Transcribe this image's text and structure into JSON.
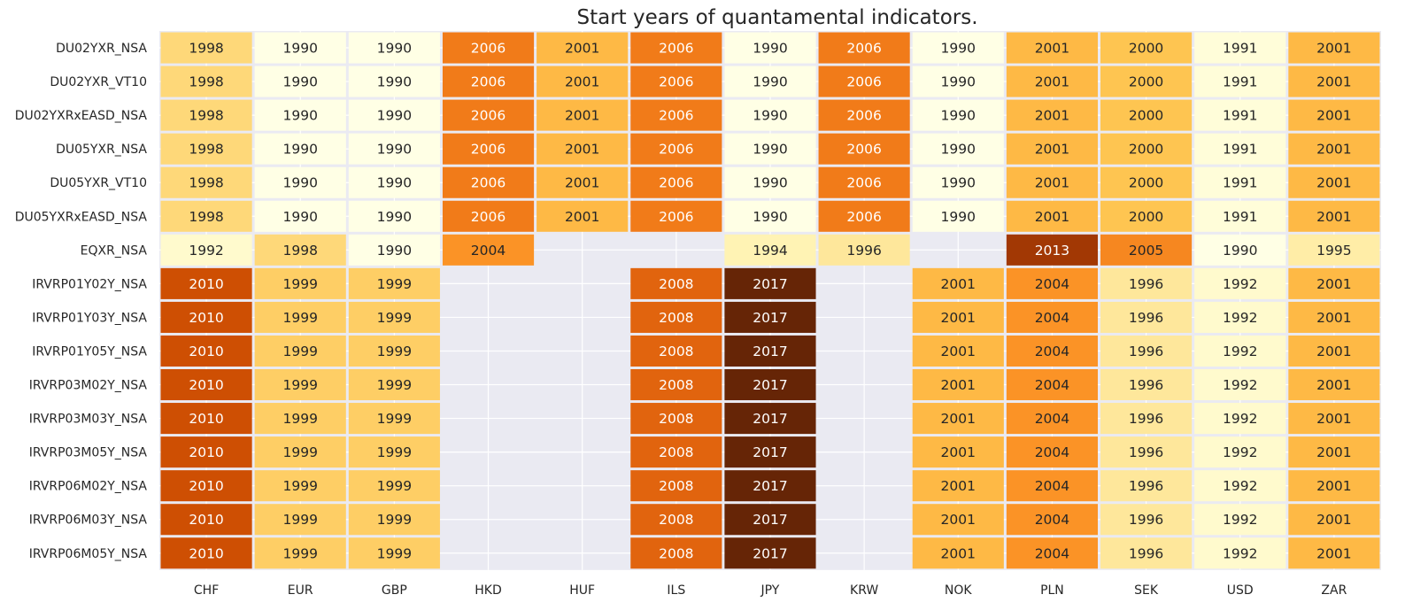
{
  "chart_data": {
    "type": "heatmap",
    "title": "Start years of quantamental indicators.",
    "xlabel": "",
    "ylabel": "",
    "columns": [
      "CHF",
      "EUR",
      "GBP",
      "HKD",
      "HUF",
      "ILS",
      "JPY",
      "KRW",
      "NOK",
      "PLN",
      "SEK",
      "USD",
      "ZAR"
    ],
    "rows": [
      "DU02YXR_NSA",
      "DU02YXR_VT10",
      "DU02YXRxEASD_NSA",
      "DU05YXR_NSA",
      "DU05YXR_VT10",
      "DU05YXRxEASD_NSA",
      "EQXR_NSA",
      "IRVRP01Y02Y_NSA",
      "IRVRP01Y03Y_NSA",
      "IRVRP01Y05Y_NSA",
      "IRVRP03M02Y_NSA",
      "IRVRP03M03Y_NSA",
      "IRVRP03M05Y_NSA",
      "IRVRP06M02Y_NSA",
      "IRVRP06M03Y_NSA",
      "IRVRP06M05Y_NSA"
    ],
    "values": [
      [
        1998,
        1990,
        1990,
        2006,
        2001,
        2006,
        1990,
        2006,
        1990,
        2001,
        2000,
        1991,
        2001
      ],
      [
        1998,
        1990,
        1990,
        2006,
        2001,
        2006,
        1990,
        2006,
        1990,
        2001,
        2000,
        1991,
        2001
      ],
      [
        1998,
        1990,
        1990,
        2006,
        2001,
        2006,
        1990,
        2006,
        1990,
        2001,
        2000,
        1991,
        2001
      ],
      [
        1998,
        1990,
        1990,
        2006,
        2001,
        2006,
        1990,
        2006,
        1990,
        2001,
        2000,
        1991,
        2001
      ],
      [
        1998,
        1990,
        1990,
        2006,
        2001,
        2006,
        1990,
        2006,
        1990,
        2001,
        2000,
        1991,
        2001
      ],
      [
        1998,
        1990,
        1990,
        2006,
        2001,
        2006,
        1990,
        2006,
        1990,
        2001,
        2000,
        1991,
        2001
      ],
      [
        1992,
        1998,
        1990,
        2004,
        null,
        null,
        1994,
        1996,
        null,
        2013,
        2005,
        1990,
        1995
      ],
      [
        2010,
        1999,
        1999,
        null,
        null,
        2008,
        2017,
        null,
        2001,
        2004,
        1996,
        1992,
        2001
      ],
      [
        2010,
        1999,
        1999,
        null,
        null,
        2008,
        2017,
        null,
        2001,
        2004,
        1996,
        1992,
        2001
      ],
      [
        2010,
        1999,
        1999,
        null,
        null,
        2008,
        2017,
        null,
        2001,
        2004,
        1996,
        1992,
        2001
      ],
      [
        2010,
        1999,
        1999,
        null,
        null,
        2008,
        2017,
        null,
        2001,
        2004,
        1996,
        1992,
        2001
      ],
      [
        2010,
        1999,
        1999,
        null,
        null,
        2008,
        2017,
        null,
        2001,
        2004,
        1996,
        1992,
        2001
      ],
      [
        2010,
        1999,
        1999,
        null,
        null,
        2008,
        2017,
        null,
        2001,
        2004,
        1996,
        1992,
        2001
      ],
      [
        2010,
        1999,
        1999,
        null,
        null,
        2008,
        2017,
        null,
        2001,
        2004,
        1996,
        1992,
        2001
      ],
      [
        2010,
        1999,
        1999,
        null,
        null,
        2008,
        2017,
        null,
        2001,
        2004,
        1996,
        1992,
        2001
      ],
      [
        2010,
        1999,
        1999,
        null,
        null,
        2008,
        2017,
        null,
        2001,
        2004,
        1996,
        1992,
        2001
      ]
    ],
    "colormap": "YlOrBr",
    "value_range": [
      1990,
      2017
    ],
    "colorbar": false,
    "missing_color": "#eaeaf2",
    "grid": true
  }
}
